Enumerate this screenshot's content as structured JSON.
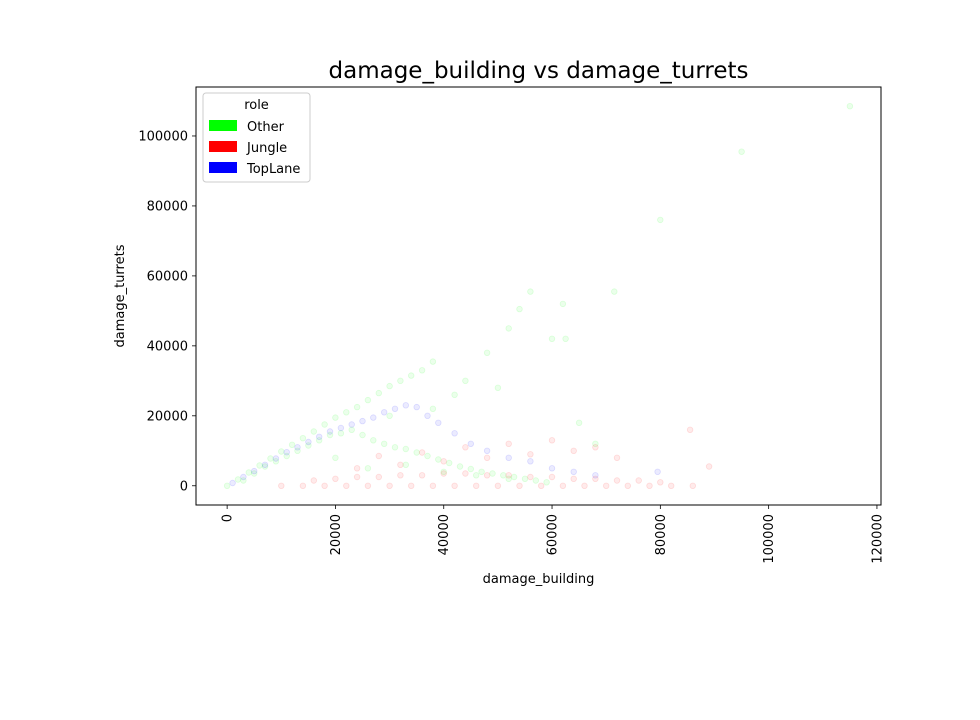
{
  "chart_data": {
    "type": "scatter",
    "title": "damage_building vs damage_turrets",
    "xlabel": "damage_building",
    "ylabel": "damage_turrets",
    "xlim": [
      -5750,
      120750
    ],
    "ylim": [
      -5500,
      114000
    ],
    "xticks": [
      0,
      20000,
      40000,
      60000,
      80000,
      100000,
      120000
    ],
    "xtick_labels": [
      "0",
      "20000",
      "40000",
      "60000",
      "80000",
      "100000",
      "120000"
    ],
    "xtick_rotation": 90,
    "yticks": [
      0,
      20000,
      40000,
      60000,
      80000,
      100000
    ],
    "ytick_labels": [
      "0",
      "20000",
      "40000",
      "60000",
      "80000",
      "100000"
    ],
    "grid": false,
    "legend": {
      "title": "role",
      "placement": "top-left",
      "entries": [
        {
          "label": "Other",
          "color": "#00ff00"
        },
        {
          "label": "Jungle",
          "color": "#ff0000"
        },
        {
          "label": "TopLane",
          "color": "#0000ff"
        }
      ]
    },
    "point_alpha": 0.08,
    "series": [
      {
        "name": "Other",
        "color": "#00ff00",
        "x": [
          0,
          2000,
          4000,
          6000,
          8000,
          10000,
          12000,
          14000,
          16000,
          18000,
          20000,
          22000,
          24000,
          26000,
          28000,
          30000,
          32000,
          34000,
          36000,
          38000,
          3000,
          5000,
          7000,
          9000,
          11000,
          13000,
          15000,
          17000,
          19000,
          21000,
          23000,
          25000,
          27000,
          29000,
          31000,
          33000,
          35000,
          37000,
          39000,
          41000,
          43000,
          45000,
          47000,
          49000,
          51000,
          53000,
          55000,
          57000,
          59000,
          44000,
          48000,
          52000,
          56000,
          60000,
          62000,
          65000,
          68000,
          71500,
          80000,
          95000,
          115000,
          20000,
          26000,
          33000,
          40000,
          46000,
          52000,
          30000,
          38000,
          42000,
          50000,
          54000,
          62500
        ],
        "y": [
          0,
          1800,
          3800,
          5800,
          7800,
          9800,
          11700,
          13600,
          15500,
          17500,
          19500,
          21000,
          22500,
          24500,
          26500,
          28500,
          30000,
          31500,
          33000,
          35500,
          1500,
          3500,
          5500,
          7000,
          8500,
          10000,
          11500,
          13000,
          14500,
          15000,
          16000,
          14500,
          13000,
          12000,
          11000,
          10500,
          9500,
          8500,
          7500,
          6500,
          5500,
          4800,
          4000,
          3500,
          3000,
          2500,
          2000,
          1500,
          1000,
          30000,
          38000,
          45000,
          55500,
          42000,
          52000,
          18000,
          12000,
          55500,
          76000,
          95500,
          108500,
          8000,
          5000,
          6000,
          4000,
          3000,
          2000,
          20000,
          22000,
          26000,
          28000,
          50500,
          42000
        ]
      },
      {
        "name": "Jungle",
        "color": "#ff0000",
        "x": [
          10000,
          14000,
          18000,
          22000,
          26000,
          30000,
          34000,
          38000,
          42000,
          46000,
          50000,
          54000,
          58000,
          62000,
          66000,
          70000,
          74000,
          78000,
          82000,
          86000,
          89000,
          16000,
          20000,
          24000,
          28000,
          32000,
          36000,
          40000,
          44000,
          48000,
          52000,
          56000,
          60000,
          64000,
          68000,
          72000,
          76000,
          80000,
          24000,
          32000,
          40000,
          48000,
          56000,
          64000,
          72000,
          28000,
          36000,
          44000,
          52000,
          60000,
          68000,
          85500
        ],
        "y": [
          0,
          0,
          0,
          0,
          0,
          0,
          0,
          0,
          0,
          0,
          0,
          0,
          0,
          0,
          0,
          0,
          0,
          0,
          0,
          0,
          5500,
          1500,
          2000,
          2500,
          2500,
          3000,
          3000,
          3500,
          3500,
          3000,
          3000,
          2500,
          2500,
          2000,
          2000,
          1500,
          1500,
          1000,
          5000,
          6000,
          7000,
          8000,
          9000,
          10000,
          8000,
          8500,
          9500,
          11000,
          12000,
          13000,
          11000,
          16000
        ]
      },
      {
        "name": "TopLane",
        "color": "#0000ff",
        "x": [
          1000,
          3000,
          5000,
          7000,
          9000,
          11000,
          13000,
          15000,
          17000,
          19000,
          21000,
          23000,
          25000,
          27000,
          29000,
          31000,
          33000,
          35000,
          37000,
          39000,
          42000,
          45000,
          48000,
          52000,
          56000,
          60000,
          64000,
          68000,
          79500
        ],
        "y": [
          800,
          2500,
          4200,
          6000,
          7800,
          9600,
          11000,
          12500,
          14000,
          15500,
          16500,
          17500,
          18500,
          19500,
          21000,
          22000,
          23000,
          22500,
          20000,
          18000,
          15000,
          12000,
          10000,
          8000,
          7000,
          5000,
          4000,
          3000,
          4000
        ]
      }
    ]
  }
}
